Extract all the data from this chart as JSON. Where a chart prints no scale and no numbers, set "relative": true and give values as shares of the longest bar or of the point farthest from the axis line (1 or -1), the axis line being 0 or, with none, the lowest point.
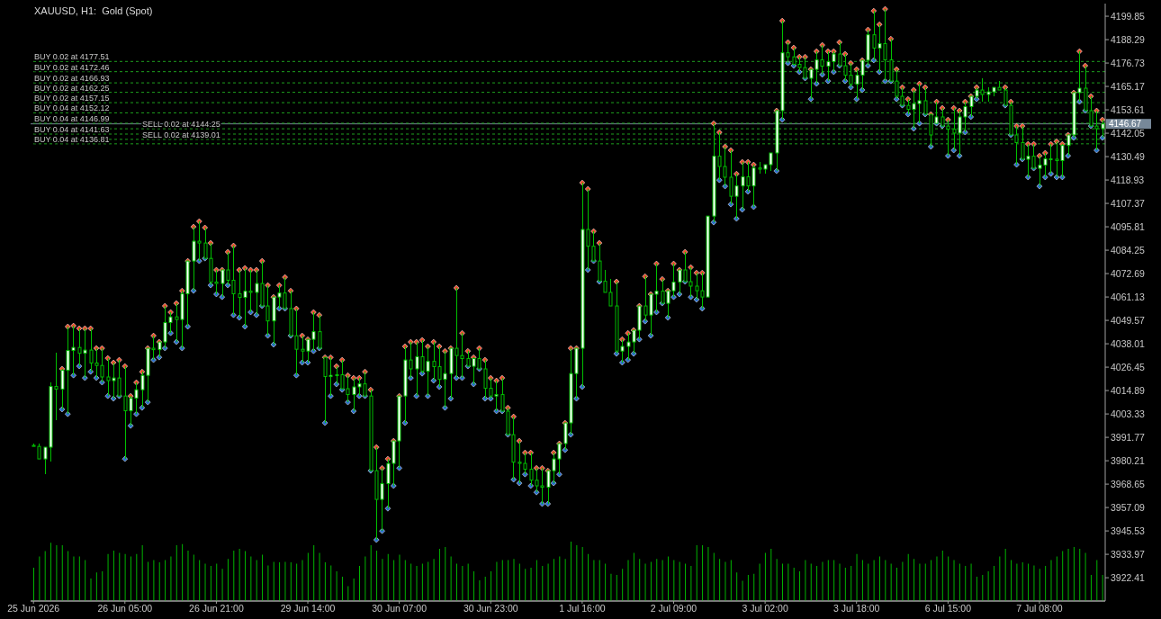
{
  "chart_data": [
    {
      "type": "candlestick",
      "title": "XAUUSD, H1:  Gold (Spot)",
      "categories": [
        "25 Jun 2026",
        null,
        null,
        null,
        null,
        null,
        null,
        null,
        null,
        null,
        null,
        null,
        null,
        null,
        null,
        null,
        "26 Jun 05:00",
        null,
        null,
        null,
        null,
        null,
        null,
        null,
        null,
        null,
        null,
        null,
        null,
        null,
        null,
        null,
        "26 Jun 21:00",
        null,
        null,
        null,
        null,
        null,
        null,
        null,
        null,
        null,
        null,
        null,
        null,
        null,
        null,
        null,
        "29 Jun 14:00",
        null,
        null,
        null,
        null,
        null,
        null,
        null,
        null,
        null,
        null,
        null,
        null,
        null,
        null,
        null,
        "30 Jun 07:00",
        null,
        null,
        null,
        null,
        null,
        null,
        null,
        null,
        null,
        null,
        null,
        null,
        null,
        null,
        null,
        "30 Jun 23:00",
        null,
        null,
        null,
        null,
        null,
        null,
        null,
        null,
        null,
        null,
        null,
        null,
        null,
        null,
        null,
        "1 Jul 16:00",
        null,
        null,
        null,
        null,
        null,
        null,
        null,
        null,
        null,
        null,
        null,
        null,
        null,
        null,
        null,
        "2 Jul 09:00",
        null,
        null,
        null,
        null,
        null,
        null,
        null,
        null,
        null,
        null,
        null,
        null,
        null,
        null,
        null,
        "3 Jul 02:00",
        null,
        null,
        null,
        null,
        null,
        null,
        null,
        null,
        null,
        null,
        null,
        null,
        null,
        null,
        null,
        "3 Jul 18:00",
        null,
        null,
        null,
        null,
        null,
        null,
        null,
        null,
        null,
        null,
        null,
        null,
        null,
        null,
        null,
        "6 Jul 15:00",
        null,
        null,
        null,
        null,
        null,
        null,
        null,
        null,
        null,
        null,
        null,
        null,
        null,
        null,
        null,
        "7 Jul 08:00",
        null,
        null,
        null,
        null,
        null,
        null,
        null,
        null,
        null,
        null,
        null
      ],
      "ohlc": [
        [
          3987.8,
          3988.7,
          3987.3,
          3987.3
        ],
        [
          3987.3,
          3988.7,
          3981.1,
          3981.1
        ],
        [
          3981.1,
          3986.9,
          3973.5,
          3986.9
        ],
        [
          3986.9,
          4018.9,
          3979.8,
          4016.9
        ],
        [
          4016.9,
          4033.6,
          4000.2,
          4015.6
        ],
        [
          4015.6,
          4025.6,
          4005.6,
          4024.9
        ],
        [
          4024.9,
          4046.5,
          4003.3,
          4034.7
        ],
        [
          4034.7,
          4046.9,
          4022.4,
          4036.2
        ],
        [
          4036.2,
          4045.6,
          4026.9,
          4033.3
        ],
        [
          4033.3,
          4045.6,
          4021.1,
          4034.9
        ],
        [
          4034.9,
          4045.6,
          4024.2,
          4028.5
        ],
        [
          4028.5,
          4035.8,
          4021.1,
          4027.3
        ],
        [
          4027.3,
          4035.8,
          4018.9,
          4021.6
        ],
        [
          4021.6,
          4030.9,
          4012.2,
          4019.8
        ],
        [
          4019.8,
          4028.7,
          4010.9,
          4021.1
        ],
        [
          4021.1,
          4030.0,
          4012.2,
          4012.2
        ],
        [
          4012.2,
          4026.9,
          3981.1,
          4004.9
        ],
        [
          4004.9,
          4012.2,
          3997.5,
          4011.1
        ],
        [
          4011.1,
          4018.9,
          4003.3,
          4015.3
        ],
        [
          4015.3,
          4024.2,
          4006.4,
          4022.4
        ],
        [
          4022.4,
          4035.8,
          4009.1,
          4035.8
        ],
        [
          4035.8,
          4042.0,
          4030.0,
          4035.1
        ],
        [
          4035.1,
          4038.9,
          4031.3,
          4038.9
        ],
        [
          4038.9,
          4056.7,
          4035.8,
          4048.5
        ],
        [
          4048.5,
          4053.6,
          4043.3,
          4051.3
        ],
        [
          4051.3,
          4058.0,
          4038.9,
          4050.0
        ],
        [
          4050.0,
          4064.2,
          4035.8,
          4062.7
        ],
        [
          4062.7,
          4078.9,
          4046.5,
          4078.9
        ],
        [
          4078.9,
          4095.8,
          4064.2,
          4088.7
        ],
        [
          4088.7,
          4098.5,
          4078.9,
          4087.8
        ],
        [
          4087.8,
          4095.4,
          4080.2,
          4080.2
        ],
        [
          4080.2,
          4087.8,
          4066.9,
          4068.5
        ],
        [
          4068.5,
          4074.5,
          4062.5,
          4067.8
        ],
        [
          4067.8,
          4074.5,
          4061.1,
          4074.5
        ],
        [
          4074.5,
          4083.4,
          4066.9,
          4069.4
        ],
        [
          4069.4,
          4086.5,
          4052.2,
          4062.7
        ],
        [
          4062.7,
          4074.5,
          4050.9,
          4060.9
        ],
        [
          4060.9,
          4075.4,
          4046.5,
          4064.0
        ],
        [
          4064.0,
          4074.5,
          4053.6,
          4063.4
        ],
        [
          4063.4,
          4074.5,
          4052.2,
          4067.8
        ],
        [
          4067.8,
          4078.9,
          4056.7,
          4056.7
        ],
        [
          4056.7,
          4066.9,
          4042.0,
          4049.3
        ],
        [
          4049.3,
          4061.1,
          4037.6,
          4061.1
        ],
        [
          4061.1,
          4066.9,
          4055.4,
          4063.1
        ],
        [
          4063.1,
          4070.9,
          4055.4,
          4055.4
        ],
        [
          4055.4,
          4064.2,
          4042.0,
          4042.0
        ],
        [
          4042.0,
          4055.4,
          4022.4,
          4035.3
        ],
        [
          4035.3,
          4042.0,
          4028.7,
          4034.4
        ],
        [
          4034.4,
          4040.2,
          4028.7,
          4040.2
        ],
        [
          4040.2,
          4053.6,
          4034.4,
          4044.0
        ],
        [
          4044.0,
          4052.2,
          4035.8,
          4035.8
        ],
        [
          4031.3,
          4031.3,
          3998.9,
          4021.8
        ],
        [
          4021.8,
          4031.3,
          4012.2,
          4022.4
        ],
        [
          4022.4,
          4026.9,
          4018.0,
          4022.7
        ],
        [
          4022.7,
          4030.0,
          4015.3,
          4015.8
        ],
        [
          4015.8,
          4022.4,
          4009.1,
          4012.9
        ],
        [
          4012.9,
          4021.1,
          4004.7,
          4016.7
        ],
        [
          4016.7,
          4021.1,
          4012.2,
          4018.2
        ],
        [
          4018.2,
          4024.2,
          4012.2,
          4012.2
        ],
        [
          4012.2,
          4015.3,
          3975.3,
          3975.3
        ],
        [
          3975.3,
          3986.9,
          3941.1,
          3961.1
        ],
        [
          3961.1,
          3976.6,
          3945.5,
          3968.9
        ],
        [
          3968.9,
          3981.1,
          3956.6,
          3978.9
        ],
        [
          3978.9,
          3990.0,
          3967.8,
          3990.0
        ],
        [
          3990.0,
          4012.2,
          3976.6,
          4012.2
        ],
        [
          4012.2,
          4036.7,
          3998.9,
          4030.0
        ],
        [
          4030.0,
          4038.9,
          4021.1,
          4025.6
        ],
        [
          4025.6,
          4038.9,
          4012.2,
          4031.6
        ],
        [
          4031.6,
          4039.8,
          4023.3,
          4024.4
        ],
        [
          4024.4,
          4036.7,
          4012.2,
          4029.3
        ],
        [
          4029.3,
          4038.9,
          4019.8,
          4026.7
        ],
        [
          4026.7,
          4036.7,
          4016.7,
          4020.4
        ],
        [
          4020.4,
          4034.4,
          4006.4,
          4023.3
        ],
        [
          4023.3,
          4035.8,
          4010.9,
          4035.8
        ],
        [
          4035.8,
          4065.6,
          4021.1,
          4032.2
        ],
        [
          4032.2,
          4043.3,
          4021.1,
          4030.7
        ],
        [
          4030.7,
          4034.4,
          4026.9,
          4026.9
        ],
        [
          4026.9,
          4031.3,
          4018.0,
          4030.7
        ],
        [
          4030.7,
          4035.8,
          4025.6,
          4025.6
        ],
        [
          4025.6,
          4030.0,
          4010.9,
          4016.0
        ],
        [
          4016.0,
          4021.1,
          4010.9,
          4012.2
        ],
        [
          4012.2,
          4019.8,
          4004.7,
          4012.9
        ],
        [
          4012.9,
          4021.1,
          4004.7,
          4004.7
        ],
        [
          4004.7,
          4006.4,
          3993.1,
          3993.1
        ],
        [
          3993.1,
          4002.0,
          3970.9,
          3979.5
        ],
        [
          3979.5,
          3990.0,
          3969.1,
          3978.9
        ],
        [
          3978.9,
          3984.2,
          3973.5,
          3976.0
        ],
        [
          3976.0,
          3984.2,
          3967.8,
          3970.6
        ],
        [
          3970.6,
          3976.6,
          3964.6,
          3967.8
        ],
        [
          3967.8,
          3976.6,
          3958.9,
          3967.1
        ],
        [
          3967.1,
          3975.3,
          3958.9,
          3975.3
        ],
        [
          3975.3,
          3984.2,
          3969.1,
          3981.1
        ],
        [
          3981.1,
          3988.7,
          3973.5,
          3988.7
        ],
        [
          3988.7,
          3998.9,
          3985.5,
          3998.9
        ],
        [
          3998.9,
          4035.8,
          3993.1,
          4023.3
        ],
        [
          4023.3,
          4035.8,
          4010.9,
          4035.8
        ],
        [
          4035.8,
          4117.6,
          4016.7,
          4094.5
        ],
        [
          4094.5,
          4114.5,
          4074.5,
          4086.2
        ],
        [
          4086.2,
          4093.6,
          4078.9,
          4078.9
        ],
        [
          4078.9,
          4087.8,
          4068.7,
          4068.9
        ],
        [
          4068.9,
          4074.5,
          4063.4,
          4063.4
        ],
        [
          4063.4,
          4070.0,
          4056.7,
          4056.7
        ],
        [
          4056.7,
          4068.7,
          4033.1,
          4034.4
        ],
        [
          4034.4,
          4040.2,
          4028.7,
          4036.7
        ],
        [
          4036.7,
          4043.3,
          4030.0,
          4038.9
        ],
        [
          4038.9,
          4044.7,
          4033.1,
          4044.7
        ],
        [
          4044.7,
          4056.7,
          4040.2,
          4056.7
        ],
        [
          4056.7,
          4071.3,
          4049.1,
          4052.2
        ],
        [
          4052.2,
          4062.5,
          4042.0,
          4062.5
        ],
        [
          4062.5,
          4077.6,
          4053.6,
          4064.0
        ],
        [
          4064.0,
          4070.0,
          4058.0,
          4058.0
        ],
        [
          4058.0,
          4064.2,
          4050.9,
          4064.2
        ],
        [
          4064.2,
          4077.6,
          4061.1,
          4068.5
        ],
        [
          4068.5,
          4074.5,
          4062.5,
          4074.5
        ],
        [
          4074.5,
          4083.4,
          4068.7,
          4068.7
        ],
        [
          4068.7,
          4075.8,
          4061.1,
          4066.5
        ],
        [
          4066.5,
          4073.1,
          4059.8,
          4064.2
        ],
        [
          4064.2,
          4073.1,
          4055.4,
          4061.1
        ],
        [
          4061.1,
          4101.1,
          4061.1,
          4101.1
        ],
        [
          4101.1,
          4146.9,
          4098.0,
          4130.7
        ],
        [
          4130.7,
          4142.5,
          4118.9,
          4125.6
        ],
        [
          4125.6,
          4135.4,
          4115.8,
          4120.3
        ],
        [
          4120.3,
          4133.6,
          4106.9,
          4110.9
        ],
        [
          4110.9,
          4122.0,
          4099.8,
          4116.0
        ],
        [
          4116.0,
          4127.8,
          4104.3,
          4120.5
        ],
        [
          4120.5,
          4127.8,
          4113.2,
          4116.0
        ],
        [
          4116.0,
          4126.5,
          4105.6,
          4124.9
        ],
        [
          4124.9,
          4127.8,
          4122.0,
          4124.3
        ],
        [
          4124.3,
          4126.5,
          4122.0,
          4126.5
        ],
        [
          4126.5,
          4132.3,
          4123.4,
          4132.3
        ],
        [
          4132.3,
          4153.2,
          4123.4,
          4153.2
        ],
        [
          4153.2,
          4197.6,
          4148.7,
          4181.8
        ],
        [
          4181.8,
          4187.0,
          4176.7,
          4179.8
        ],
        [
          4179.8,
          4184.3,
          4175.4,
          4176.1
        ],
        [
          4176.1,
          4179.8,
          4172.3,
          4174.5
        ],
        [
          4174.5,
          4179.8,
          4169.2,
          4169.2
        ],
        [
          4169.2,
          4173.6,
          4158.9,
          4173.6
        ],
        [
          4173.6,
          4182.5,
          4166.5,
          4178.3
        ],
        [
          4178.3,
          4185.6,
          4171.0,
          4175.2
        ],
        [
          4175.2,
          4182.5,
          4167.8,
          4177.4
        ],
        [
          4177.4,
          4182.5,
          4172.3,
          4181.2
        ],
        [
          4181.2,
          4187.0,
          4175.4,
          4175.4
        ],
        [
          4175.4,
          4181.2,
          4167.8,
          4170.7
        ],
        [
          4170.7,
          4176.7,
          4164.7,
          4166.3
        ],
        [
          4166.3,
          4173.6,
          4158.9,
          4170.7
        ],
        [
          4170.7,
          4178.1,
          4163.4,
          4178.1
        ],
        [
          4178.1,
          4193.2,
          4175.4,
          4190.7
        ],
        [
          4190.7,
          4202.5,
          4178.1,
          4184.1
        ],
        [
          4184.1,
          4195.8,
          4172.3,
          4186.3
        ],
        [
          4186.3,
          4203.4,
          4167.8,
          4178.3
        ],
        [
          4178.3,
          4188.7,
          4167.8,
          4167.8
        ],
        [
          4167.8,
          4173.6,
          4158.9,
          4160.3
        ],
        [
          4160.3,
          4164.7,
          4155.8,
          4155.8
        ],
        [
          4155.8,
          4158.9,
          4151.4,
          4153.8
        ],
        [
          4153.8,
          4163.4,
          4144.3,
          4156.7
        ],
        [
          4156.7,
          4166.5,
          4146.9,
          4158.1
        ],
        [
          4158.1,
          4164.7,
          4151.4,
          4151.4
        ],
        [
          4151.4,
          4151.4,
          4135.4,
          4141.2
        ],
        [
          4146.9,
          4157.6,
          4146.9,
          4150.1
        ],
        [
          4150.1,
          4154.5,
          4145.6,
          4145.6
        ],
        [
          4145.6,
          4148.7,
          4130.9,
          4144.0
        ],
        [
          4144.0,
          4154.5,
          4133.6,
          4142.1
        ],
        [
          4142.1,
          4153.2,
          4130.9,
          4150.1
        ],
        [
          4150.1,
          4157.6,
          4142.5,
          4155.2
        ],
        [
          4155.2,
          4160.3,
          4150.1,
          4160.3
        ],
        [
          4160.3,
          4164.7,
          4158.9,
          4163.4
        ],
        [
          4163.4,
          4169.2,
          4157.6,
          4161.2
        ],
        [
          4161.2,
          4164.7,
          4157.6,
          4162.5
        ],
        [
          4162.5,
          4164.7,
          4160.3,
          4164.7
        ],
        [
          4164.7,
          4167.8,
          4163.4,
          4163.4
        ],
        [
          4163.4,
          4164.7,
          4155.8,
          4155.8
        ],
        [
          4155.8,
          4157.6,
          4141.2,
          4141.2
        ],
        [
          4141.2,
          4145.6,
          4126.5,
          4137.4
        ],
        [
          4137.4,
          4145.6,
          4129.2,
          4129.2
        ],
        [
          4129.2,
          4136.7,
          4120.3,
          4130.7
        ],
        [
          4130.7,
          4136.7,
          4124.7,
          4124.7
        ],
        [
          4124.7,
          4130.9,
          4115.8,
          4126.3
        ],
        [
          4126.3,
          4132.3,
          4120.3,
          4129.4
        ],
        [
          4129.4,
          4136.7,
          4122.0,
          4129.2
        ],
        [
          4129.2,
          4138.0,
          4120.3,
          4128.5
        ],
        [
          4128.5,
          4136.7,
          4120.3,
          4136.0
        ],
        [
          4136.0,
          4141.2,
          4130.9,
          4141.2
        ],
        [
          4141.2,
          4162.1,
          4139.8,
          4162.1
        ],
        [
          4162.1,
          4182.5,
          4157.6,
          4164.3
        ],
        [
          4164.3,
          4175.4,
          4153.2,
          4153.2
        ],
        [
          4153.2,
          4160.3,
          4145.6,
          4145.6
        ],
        [
          4145.6,
          4153.2,
          4133.6,
          4144.3
        ],
        [
          4144.3,
          4148.7,
          4139.8,
          4146.7
        ]
      ],
      "color": "#00c000",
      "marker": "diamond",
      "series": [
        {
          "type": "scatter",
          "color": "#e8502e",
          "values": [
            null,
            null,
            null,
            null,
            null,
            4025.6,
            4046.5,
            4046.9,
            4045.6,
            4045.6,
            4045.6,
            4035.8,
            4035.8,
            4030.9,
            4028.7,
            4030.0,
            4026.9,
            4012.2,
            4018.9,
            4024.2,
            4035.8,
            4042.0,
            4038.9,
            4056.7,
            4053.6,
            4058.0,
            4064.2,
            4078.9,
            4095.8,
            4098.5,
            4095.4,
            4087.8,
            4074.5,
            4074.5,
            4083.4,
            4086.5,
            4074.5,
            4075.4,
            4074.5,
            4074.5,
            4078.9,
            4066.9,
            4061.1,
            4066.9,
            4070.9,
            4064.2,
            4055.4,
            4042.0,
            4040.2,
            4053.6,
            4052.2,
            4031.3,
            4031.3,
            4026.9,
            4030.0,
            4022.4,
            4021.1,
            4021.1,
            4024.2,
            4015.3,
            3986.9,
            3976.6,
            3981.1,
            3990.0,
            4012.2,
            4036.7,
            4038.9,
            4038.9,
            4039.8,
            4036.7,
            4038.9,
            4036.7,
            4034.4,
            4035.8,
            4065.6,
            4043.3,
            4034.4,
            4031.3,
            4035.8,
            4030.0,
            4021.1,
            4019.8,
            4021.1,
            4006.4,
            4002.0,
            3990.0,
            3984.2,
            3984.2,
            3976.6,
            3976.6,
            3975.3,
            3984.2,
            3988.7,
            3998.9,
            4035.8,
            4035.8,
            4117.6,
            4114.5,
            4093.6,
            4087.8,
            null,
            null,
            4068.7,
            4040.2,
            4043.3,
            4044.7,
            4056.7,
            4071.3,
            4062.5,
            4077.6,
            4070.0,
            4064.2,
            4077.6,
            4074.5,
            4083.4,
            4075.8,
            4073.1,
            4073.1,
            null,
            4146.9,
            4142.5,
            4135.4,
            4133.6,
            4122.0,
            4127.8,
            4127.8,
            4126.5,
            null,
            null,
            null,
            4153.2,
            4197.6,
            4187.0,
            4184.3,
            4179.8,
            4179.8,
            4173.6,
            4182.5,
            4185.6,
            4182.5,
            4182.5,
            4187.0,
            4181.2,
            4176.7,
            4173.6,
            4178.1,
            4193.2,
            4202.5,
            4195.8,
            4203.4,
            4188.7,
            4173.6,
            4164.7,
            4158.9,
            4163.4,
            4166.5,
            4164.7,
            4151.4,
            4157.6,
            4154.5,
            4148.7,
            4154.5,
            4153.2,
            4157.6,
            4160.3,
            4164.7,
            null,
            null,
            null,
            null,
            4164.7,
            4157.6,
            4145.6,
            4145.6,
            4136.7,
            4136.7,
            4130.9,
            4132.3,
            4136.7,
            4138.0,
            4136.7,
            4141.2,
            4162.1,
            4182.5,
            4175.4,
            4160.3,
            4153.2,
            4148.7
          ]
        },
        {
          "type": "scatter",
          "color": "#2a6fc9",
          "values": [
            null,
            null,
            null,
            null,
            null,
            4005.6,
            4003.3,
            4022.4,
            4026.9,
            4021.1,
            4024.2,
            4021.1,
            4018.9,
            4012.2,
            4010.9,
            4012.2,
            3981.1,
            3997.5,
            4003.3,
            4006.4,
            4009.1,
            4030.0,
            4031.3,
            4035.8,
            4043.3,
            4038.9,
            4035.8,
            4046.5,
            4064.2,
            4078.9,
            4080.2,
            4066.9,
            4062.5,
            4061.1,
            4066.9,
            4052.2,
            4050.9,
            4046.5,
            4053.6,
            4052.2,
            4056.7,
            4042.0,
            4037.6,
            4055.4,
            4055.4,
            4042.0,
            4022.4,
            4028.7,
            4028.7,
            4034.4,
            4035.8,
            3998.9,
            4012.2,
            4018.0,
            4015.3,
            4009.1,
            4004.7,
            4012.2,
            4012.2,
            3975.3,
            3941.1,
            3945.5,
            3956.6,
            3967.8,
            3976.6,
            3998.9,
            4021.1,
            4012.2,
            4023.3,
            4012.2,
            4019.8,
            4016.7,
            4006.4,
            4010.9,
            4021.1,
            4021.1,
            4026.9,
            4018.0,
            4025.6,
            4010.9,
            4010.9,
            4004.7,
            4004.7,
            3993.1,
            3970.9,
            3969.1,
            3973.5,
            3967.8,
            3964.6,
            3958.9,
            3958.9,
            3969.1,
            3973.5,
            3985.5,
            3993.1,
            4010.9,
            4016.7,
            4074.5,
            4078.9,
            4068.7,
            null,
            null,
            4033.1,
            4028.7,
            4030.0,
            4033.1,
            4040.2,
            4049.1,
            4042.0,
            4053.6,
            4058.0,
            4050.9,
            4061.1,
            4062.5,
            4068.7,
            4061.1,
            4059.8,
            4055.4,
            null,
            4098.0,
            4118.9,
            4115.8,
            4106.9,
            4099.8,
            4104.3,
            4113.2,
            4105.6,
            null,
            null,
            null,
            4123.4,
            4148.7,
            4176.7,
            4175.4,
            4172.3,
            4169.2,
            4158.9,
            4166.5,
            4171.0,
            4167.8,
            4172.3,
            4175.4,
            4167.8,
            4164.7,
            4158.9,
            4163.4,
            4175.4,
            4178.1,
            4172.3,
            4167.8,
            4167.8,
            4158.9,
            4155.8,
            4151.4,
            4144.3,
            4146.9,
            4151.4,
            4135.4,
            4146.9,
            4145.6,
            4130.9,
            4133.6,
            4130.9,
            4142.5,
            4150.1,
            4158.9,
            null,
            null,
            null,
            null,
            4155.8,
            4141.2,
            4126.5,
            4129.2,
            4120.3,
            4124.7,
            4115.8,
            4120.3,
            4122.0,
            4120.3,
            4120.3,
            4130.9,
            4139.8,
            4157.6,
            4153.2,
            4145.6,
            4133.6,
            4139.8
          ]
        }
      ],
      "ylim": [
        3910.9,
        4206.1
      ],
      "yticks": [
        4199.85,
        4188.29,
        4176.73,
        4165.17,
        4153.61,
        4142.05,
        4130.49,
        4118.93,
        4107.37,
        4095.81,
        4084.25,
        4072.69,
        4061.13,
        4049.57,
        4038.01,
        4026.45,
        4014.89,
        4003.33,
        3991.77,
        3980.21,
        3968.65,
        3957.09,
        3945.53,
        3933.97,
        3922.41
      ],
      "ref_lines": [
        {
          "axis": "y",
          "value": 4146.67,
          "label": "4146.67",
          "color": "#778899",
          "line_style": "solid"
        },
        {
          "axis": "y",
          "value": 4177.51,
          "label": "BUY 0.02 at 4177.51",
          "color": "#1ea01e",
          "line_style": "dashed"
        },
        {
          "axis": "y",
          "value": 4172.46,
          "label": "BUY 0.02 at 4172.46",
          "color": "#1ea01e",
          "line_style": "dashed"
        },
        {
          "axis": "y",
          "value": 4166.93,
          "label": "BUY 0.02 at 4166.93",
          "color": "#1ea01e",
          "line_style": "dashed"
        },
        {
          "axis": "y",
          "value": 4162.25,
          "label": "BUY 0.02 at 4162.25",
          "color": "#1ea01e",
          "line_style": "dashed"
        },
        {
          "axis": "y",
          "value": 4157.15,
          "label": "BUY 0.02 at 4157.15",
          "color": "#1ea01e",
          "line_style": "dashed"
        },
        {
          "axis": "y",
          "value": 4152.12,
          "label": "BUY 0.04 at 4152.12",
          "color": "#1ea01e",
          "line_style": "dashed"
        },
        {
          "axis": "y",
          "value": 4146.99,
          "label": "BUY 0.04 at 4146.99",
          "color": "#1ea01e",
          "line_style": "dashed"
        },
        {
          "axis": "y",
          "value": 4144.25,
          "label": "SELL 0.02 at 4144.25",
          "color": "#1ea01e",
          "line_style": "dashed"
        },
        {
          "axis": "y",
          "value": 4141.63,
          "label": "BUY 0.04 at 4141.63",
          "color": "#1ea01e",
          "line_style": "dashed"
        },
        {
          "axis": "y",
          "value": 4139.01,
          "label": "SELL 0.02 at 4139.01",
          "color": "#1ea01e",
          "line_style": "dashed"
        },
        {
          "axis": "y",
          "value": 4136.81,
          "label": "BUY 0.04 at 4136.81",
          "color": "#1ea01e",
          "line_style": "dashed"
        }
      ]
    },
    {
      "type": "bar",
      "relative": true,
      "color": "#00b400",
      "categories": [
        null,
        null,
        null,
        null,
        null,
        null,
        null,
        null,
        null,
        null,
        null,
        null,
        null,
        null,
        null,
        null,
        null,
        null,
        null,
        null,
        null,
        null,
        null,
        null,
        null,
        null,
        null,
        null,
        null,
        null,
        null,
        null,
        null,
        null,
        null,
        null,
        null,
        null,
        null,
        null,
        null,
        null,
        null,
        null,
        null,
        null,
        null,
        null,
        null,
        null,
        null,
        null,
        null,
        null,
        null,
        null,
        null,
        null,
        null,
        null,
        null,
        null,
        null,
        null,
        null,
        null,
        null,
        null,
        null,
        null,
        null,
        null,
        null,
        null,
        null,
        null,
        null,
        null,
        null,
        null,
        null,
        null,
        null,
        null,
        null,
        null,
        null,
        null,
        null,
        null,
        null,
        null,
        null,
        null,
        null,
        null,
        null,
        null,
        null,
        null,
        null,
        null,
        null,
        null,
        null,
        null,
        null,
        null,
        null,
        null,
        null,
        null,
        null,
        null,
        null,
        null,
        null,
        null,
        null,
        null,
        null,
        null,
        null,
        null,
        null,
        null,
        null,
        null,
        null,
        null,
        null,
        null,
        null,
        null,
        null,
        null,
        null,
        null,
        null,
        null,
        null,
        null,
        null,
        null,
        null,
        null,
        null,
        null,
        null,
        null,
        null,
        null,
        null,
        null,
        null,
        null,
        null,
        null,
        null,
        null,
        null,
        null,
        null,
        null,
        null,
        null,
        null,
        null,
        null,
        null,
        null,
        null,
        null,
        null,
        null,
        null,
        null,
        null,
        null,
        null,
        null,
        null,
        null,
        null,
        null,
        null,
        null,
        null
      ],
      "values": [
        0.56,
        0.75,
        0.84,
        0.98,
        0.94,
        0.94,
        0.84,
        0.75,
        0.75,
        0.69,
        0.38,
        0.48,
        0.5,
        0.79,
        0.85,
        0.81,
        0.79,
        0.75,
        0.79,
        0.94,
        0.66,
        0.69,
        0.65,
        0.69,
        0.75,
        0.94,
        0.96,
        0.85,
        0.78,
        0.69,
        0.63,
        0.59,
        0.63,
        0.54,
        0.71,
        0.85,
        0.88,
        0.84,
        0.75,
        0.69,
        0.78,
        0.6,
        0.66,
        0.65,
        0.66,
        0.65,
        0.63,
        0.69,
        0.81,
        0.94,
        0.81,
        0.65,
        0.6,
        0.5,
        0.41,
        0.25,
        0.38,
        0.59,
        0.75,
        0.94,
        0.85,
        0.71,
        0.79,
        0.69,
        0.78,
        0.69,
        0.63,
        0.59,
        0.63,
        0.66,
        0.71,
        0.88,
        0.91,
        0.75,
        0.63,
        0.59,
        0.63,
        0.5,
        0.35,
        0.41,
        0.5,
        0.66,
        0.69,
        0.69,
        0.71,
        0.63,
        0.54,
        0.56,
        0.69,
        0.59,
        0.63,
        0.71,
        0.75,
        0.71,
        1,
        0.94,
        0.91,
        0.79,
        0.69,
        0.69,
        0.63,
        0.46,
        0.44,
        0.54,
        0.69,
        0.81,
        0.71,
        0.63,
        0.66,
        0.71,
        0.69,
        0.75,
        0.69,
        0.66,
        0.63,
        0.59,
        0.94,
        0.94,
        0.91,
        0.81,
        0.71,
        0.66,
        0.69,
        0.48,
        0.34,
        0.44,
        0.46,
        0.63,
        0.81,
        0.88,
        0.71,
        0.63,
        0.63,
        0.56,
        0.5,
        0.69,
        0.63,
        0.59,
        0.66,
        0.69,
        0.69,
        0.63,
        0.56,
        0.59,
        0.79,
        0.69,
        0.63,
        0.69,
        0.75,
        0.69,
        0.63,
        0.56,
        0.66,
        0.79,
        0.71,
        0.63,
        0.63,
        0.69,
        0.75,
        0.85,
        0.75,
        0.69,
        0.63,
        0.59,
        0.63,
        0.41,
        0.44,
        0.5,
        0.59,
        0.75,
        0.88,
        0.69,
        0.63,
        0.65,
        0.63,
        0.6,
        0.54,
        0.59,
        0.69,
        0.75,
        0.84,
        0.88,
        0.91,
        0.88,
        0.81,
        0.44,
        0.69,
        0.44
      ]
    }
  ]
}
